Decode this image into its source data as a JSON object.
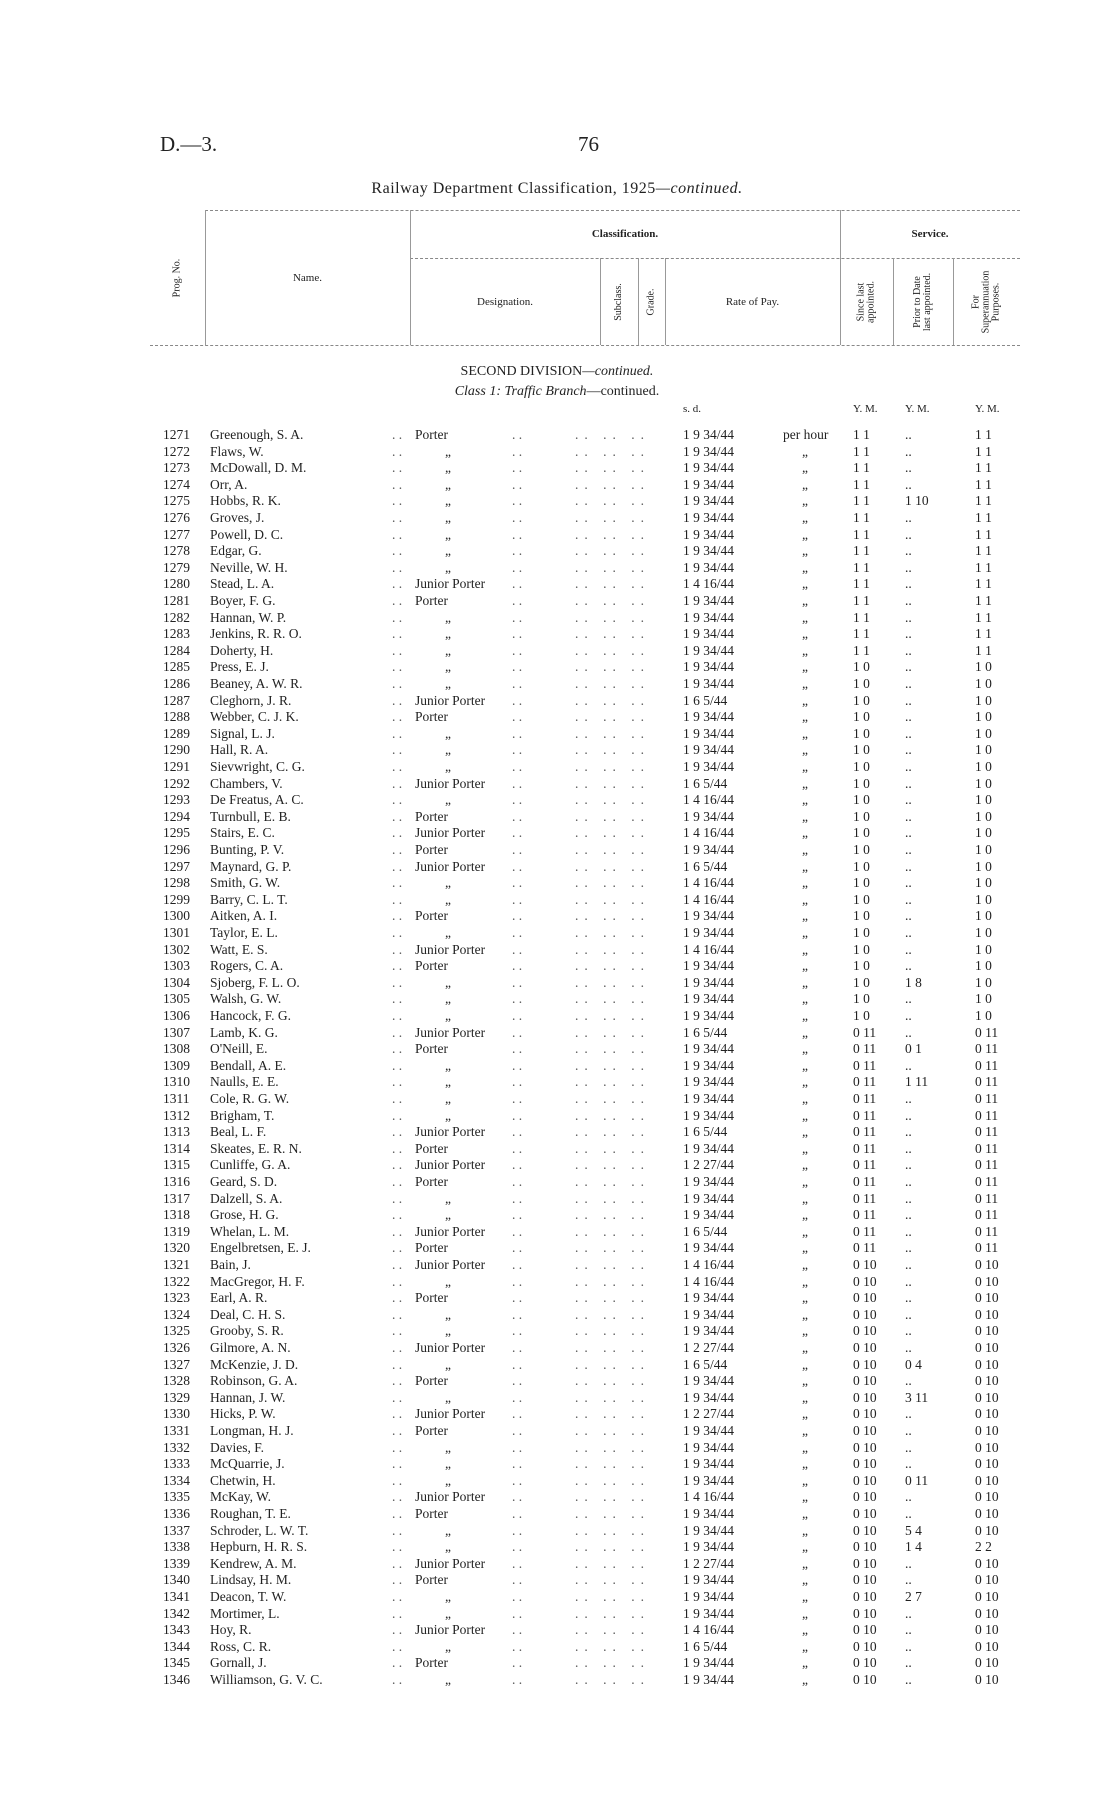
{
  "header": {
    "doc_ref": "D.—3.",
    "page_number": "76",
    "title": "Railway Department Classification, 1925",
    "title_suffix": "—continued."
  },
  "table_header": {
    "prog_no": "Prog. No.",
    "name": "Name.",
    "classification": "Classification.",
    "designation": "Designation.",
    "subclass": "Subclass.",
    "grade": "Grade.",
    "rate_of_pay": "Rate of Pay.",
    "service": "Service.",
    "since_last": "Since last appointed.",
    "prior_to": "Prior to Date last appointed.",
    "for_super": "For Superannuation Purposes."
  },
  "section": {
    "division": "SECOND DIVISION",
    "division_suffix": "—continued.",
    "class": "Class 1: Traffic Branch",
    "class_suffix": "—continued."
  },
  "units": {
    "pay": "s. d.",
    "since": "Y. M.",
    "prior": "Y. M.",
    "super": "Y. M."
  },
  "rows": [
    [
      "1271",
      "Greenough, S. A.",
      "Porter",
      "1 9 34/44",
      "per hour",
      "1 1",
      "..",
      "1 1"
    ],
    [
      "1272",
      "Flaws, W.",
      "„",
      "1 9 34/44",
      "„",
      "1 1",
      "..",
      "1 1"
    ],
    [
      "1273",
      "McDowall, D. M.",
      "„",
      "1 9 34/44",
      "„",
      "1 1",
      "..",
      "1 1"
    ],
    [
      "1274",
      "Orr, A.",
      "„",
      "1 9 34/44",
      "„",
      "1 1",
      "..",
      "1 1"
    ],
    [
      "1275",
      "Hobbs, R. K.",
      "„",
      "1 9 34/44",
      "„",
      "1 1",
      "1 10",
      "1 1"
    ],
    [
      "1276",
      "Groves, J.",
      "„",
      "1 9 34/44",
      "„",
      "1 1",
      "..",
      "1 1"
    ],
    [
      "1277",
      "Powell, D. C.",
      "„",
      "1 9 34/44",
      "„",
      "1 1",
      "..",
      "1 1"
    ],
    [
      "1278",
      "Edgar, G.",
      "„",
      "1 9 34/44",
      "„",
      "1 1",
      "..",
      "1 1"
    ],
    [
      "1279",
      "Neville, W. H.",
      "„",
      "1 9 34/44",
      "„",
      "1 1",
      "..",
      "1 1"
    ],
    [
      "1280",
      "Stead, L. A.",
      "Junior Porter",
      "1 4 16/44",
      "„",
      "1 1",
      "..",
      "1 1"
    ],
    [
      "1281",
      "Boyer, F. G.",
      "Porter",
      "1 9 34/44",
      "„",
      "1 1",
      "..",
      "1 1"
    ],
    [
      "1282",
      "Hannan, W. P.",
      "„",
      "1 9 34/44",
      "„",
      "1 1",
      "..",
      "1 1"
    ],
    [
      "1283",
      "Jenkins, R. R. O.",
      "„",
      "1 9 34/44",
      "„",
      "1 1",
      "..",
      "1 1"
    ],
    [
      "1284",
      "Doherty, H.",
      "„",
      "1 9 34/44",
      "„",
      "1 1",
      "..",
      "1 1"
    ],
    [
      "1285",
      "Press, E. J.",
      "„",
      "1 9 34/44",
      "„",
      "1 0",
      "..",
      "1 0"
    ],
    [
      "1286",
      "Beaney, A. W. R.",
      "„",
      "1 9 34/44",
      "„",
      "1 0",
      "..",
      "1 0"
    ],
    [
      "1287",
      "Cleghorn, J. R.",
      "Junior Porter",
      "1 6 5/44",
      "„",
      "1 0",
      "..",
      "1 0"
    ],
    [
      "1288",
      "Webber, C. J. K.",
      "Porter",
      "1 9 34/44",
      "„",
      "1 0",
      "..",
      "1 0"
    ],
    [
      "1289",
      "Signal, L. J.",
      "„",
      "1 9 34/44",
      "„",
      "1 0",
      "..",
      "1 0"
    ],
    [
      "1290",
      "Hall, R. A.",
      "„",
      "1 9 34/44",
      "„",
      "1 0",
      "..",
      "1 0"
    ],
    [
      "1291",
      "Sievwright, C. G.",
      "„",
      "1 9 34/44",
      "„",
      "1 0",
      "..",
      "1 0"
    ],
    [
      "1292",
      "Chambers, V.",
      "Junior Porter",
      "1 6 5/44",
      "„",
      "1 0",
      "..",
      "1 0"
    ],
    [
      "1293",
      "De Freatus, A. C.",
      "„",
      "1 4 16/44",
      "„",
      "1 0",
      "..",
      "1 0"
    ],
    [
      "1294",
      "Turnbull, E. B.",
      "Porter",
      "1 9 34/44",
      "„",
      "1 0",
      "..",
      "1 0"
    ],
    [
      "1295",
      "Stairs, E. C.",
      "Junior Porter",
      "1 4 16/44",
      "„",
      "1 0",
      "..",
      "1 0"
    ],
    [
      "1296",
      "Bunting, P. V.",
      "Porter",
      "1 9 34/44",
      "„",
      "1 0",
      "..",
      "1 0"
    ],
    [
      "1297",
      "Maynard, G. P.",
      "Junior Porter",
      "1 6 5/44",
      "„",
      "1 0",
      "..",
      "1 0"
    ],
    [
      "1298",
      "Smith, G. W.",
      "„",
      "1 4 16/44",
      "„",
      "1 0",
      "..",
      "1 0"
    ],
    [
      "1299",
      "Barry, C. L. T.",
      "„",
      "1 4 16/44",
      "„",
      "1 0",
      "..",
      "1 0"
    ],
    [
      "1300",
      "Aitken, A. I.",
      "Porter",
      "1 9 34/44",
      "„",
      "1 0",
      "..",
      "1 0"
    ],
    [
      "1301",
      "Taylor, E. L.",
      "„",
      "1 9 34/44",
      "„",
      "1 0",
      "..",
      "1 0"
    ],
    [
      "1302",
      "Watt, E. S.",
      "Junior Porter",
      "1 4 16/44",
      "„",
      "1 0",
      "..",
      "1 0"
    ],
    [
      "1303",
      "Rogers, C. A.",
      "Porter",
      "1 9 34/44",
      "„",
      "1 0",
      "..",
      "1 0"
    ],
    [
      "1304",
      "Sjoberg, F. L. O.",
      "„",
      "1 9 34/44",
      "„",
      "1 0",
      "1 8",
      "1 0"
    ],
    [
      "1305",
      "Walsh, G. W.",
      "„",
      "1 9 34/44",
      "„",
      "1 0",
      "..",
      "1 0"
    ],
    [
      "1306",
      "Hancock, F. G.",
      "„",
      "1 9 34/44",
      "„",
      "1 0",
      "..",
      "1 0"
    ],
    [
      "1307",
      "Lamb, K. G.",
      "Junior Porter",
      "1 6 5/44",
      "„",
      "0 11",
      "..",
      "0 11"
    ],
    [
      "1308",
      "O'Neill, E.",
      "Porter",
      "1 9 34/44",
      "„",
      "0 11",
      "0 1",
      "0 11"
    ],
    [
      "1309",
      "Bendall, A. E.",
      "„",
      "1 9 34/44",
      "„",
      "0 11",
      "..",
      "0 11"
    ],
    [
      "1310",
      "Naulls, E. E.",
      "„",
      "1 9 34/44",
      "„",
      "0 11",
      "1 11",
      "0 11"
    ],
    [
      "1311",
      "Cole, R. G. W.",
      "„",
      "1 9 34/44",
      "„",
      "0 11",
      "..",
      "0 11"
    ],
    [
      "1312",
      "Brigham, T.",
      "„",
      "1 9 34/44",
      "„",
      "0 11",
      "..",
      "0 11"
    ],
    [
      "1313",
      "Beal, L. F.",
      "Junior Porter",
      "1 6 5/44",
      "„",
      "0 11",
      "..",
      "0 11"
    ],
    [
      "1314",
      "Skeates, E. R. N.",
      "Porter",
      "1 9 34/44",
      "„",
      "0 11",
      "..",
      "0 11"
    ],
    [
      "1315",
      "Cunliffe, G. A.",
      "Junior Porter",
      "1 2 27/44",
      "„",
      "0 11",
      "..",
      "0 11"
    ],
    [
      "1316",
      "Geard, S. D.",
      "Porter",
      "1 9 34/44",
      "„",
      "0 11",
      "..",
      "0 11"
    ],
    [
      "1317",
      "Dalzell, S. A.",
      "„",
      "1 9 34/44",
      "„",
      "0 11",
      "..",
      "0 11"
    ],
    [
      "1318",
      "Grose, H. G.",
      "„",
      "1 9 34/44",
      "„",
      "0 11",
      "..",
      "0 11"
    ],
    [
      "1319",
      "Whelan, L. M.",
      "Junior Porter",
      "1 6 5/44",
      "„",
      "0 11",
      "..",
      "0 11"
    ],
    [
      "1320",
      "Engelbretsen, E. J.",
      "Porter",
      "1 9 34/44",
      "„",
      "0 11",
      "..",
      "0 11"
    ],
    [
      "1321",
      "Bain, J.",
      "Junior Porter",
      "1 4 16/44",
      "„",
      "0 10",
      "..",
      "0 10"
    ],
    [
      "1322",
      "MacGregor, H. F.",
      "„",
      "1 4 16/44",
      "„",
      "0 10",
      "..",
      "0 10"
    ],
    [
      "1323",
      "Earl, A. R.",
      "Porter",
      "1 9 34/44",
      "„",
      "0 10",
      "..",
      "0 10"
    ],
    [
      "1324",
      "Deal, C. H. S.",
      "„",
      "1 9 34/44",
      "„",
      "0 10",
      "..",
      "0 10"
    ],
    [
      "1325",
      "Grooby, S. R.",
      "„",
      "1 9 34/44",
      "„",
      "0 10",
      "..",
      "0 10"
    ],
    [
      "1326",
      "Gilmore, A. N.",
      "Junior Porter",
      "1 2 27/44",
      "„",
      "0 10",
      "..",
      "0 10"
    ],
    [
      "1327",
      "McKenzie, J. D.",
      "„",
      "1 6 5/44",
      "„",
      "0 10",
      "0 4",
      "0 10"
    ],
    [
      "1328",
      "Robinson, G. A.",
      "Porter",
      "1 9 34/44",
      "„",
      "0 10",
      "..",
      "0 10"
    ],
    [
      "1329",
      "Hannan, J. W.",
      "„",
      "1 9 34/44",
      "„",
      "0 10",
      "3 11",
      "0 10"
    ],
    [
      "1330",
      "Hicks, P. W.",
      "Junior Porter",
      "1 2 27/44",
      "„",
      "0 10",
      "..",
      "0 10"
    ],
    [
      "1331",
      "Longman, H. J.",
      "Porter",
      "1 9 34/44",
      "„",
      "0 10",
      "..",
      "0 10"
    ],
    [
      "1332",
      "Davies, F.",
      "„",
      "1 9 34/44",
      "„",
      "0 10",
      "..",
      "0 10"
    ],
    [
      "1333",
      "McQuarrie, J.",
      "„",
      "1 9 34/44",
      "„",
      "0 10",
      "..",
      "0 10"
    ],
    [
      "1334",
      "Chetwin, H.",
      "„",
      "1 9 34/44",
      "„",
      "0 10",
      "0 11",
      "0 10"
    ],
    [
      "1335",
      "McKay, W.",
      "Junior Porter",
      "1 4 16/44",
      "„",
      "0 10",
      "..",
      "0 10"
    ],
    [
      "1336",
      "Roughan, T. E.",
      "Porter",
      "1 9 34/44",
      "„",
      "0 10",
      "..",
      "0 10"
    ],
    [
      "1337",
      "Schroder, L. W. T.",
      "„",
      "1 9 34/44",
      "„",
      "0 10",
      "5 4",
      "0 10"
    ],
    [
      "1338",
      "Hepburn, H. R. S.",
      "„",
      "1 9 34/44",
      "„",
      "0 10",
      "1 4",
      "2 2"
    ],
    [
      "1339",
      "Kendrew, A. M.",
      "Junior Porter",
      "1 2 27/44",
      "„",
      "0 10",
      "..",
      "0 10"
    ],
    [
      "1340",
      "Lindsay, H. M.",
      "Porter",
      "1 9 34/44",
      "„",
      "0 10",
      "..",
      "0 10"
    ],
    [
      "1341",
      "Deacon, T. W.",
      "„",
      "1 9 34/44",
      "„",
      "0 10",
      "2 7",
      "0 10"
    ],
    [
      "1342",
      "Mortimer, L.",
      "„",
      "1 9 34/44",
      "„",
      "0 10",
      "..",
      "0 10"
    ],
    [
      "1343",
      "Hoy, R.",
      "Junior Porter",
      "1 4 16/44",
      "„",
      "0 10",
      "..",
      "0 10"
    ],
    [
      "1344",
      "Ross, C. R.",
      "„",
      "1 6 5/44",
      "„",
      "0 10",
      "..",
      "0 10"
    ],
    [
      "1345",
      "Gornall, J.",
      "Porter",
      "1 9 34/44",
      "„",
      "0 10",
      "..",
      "0 10"
    ],
    [
      "1346",
      "Williamson, G. V. C.",
      "„",
      "1 9 34/44",
      "„",
      "0 10",
      "..",
      "0 10"
    ]
  ]
}
